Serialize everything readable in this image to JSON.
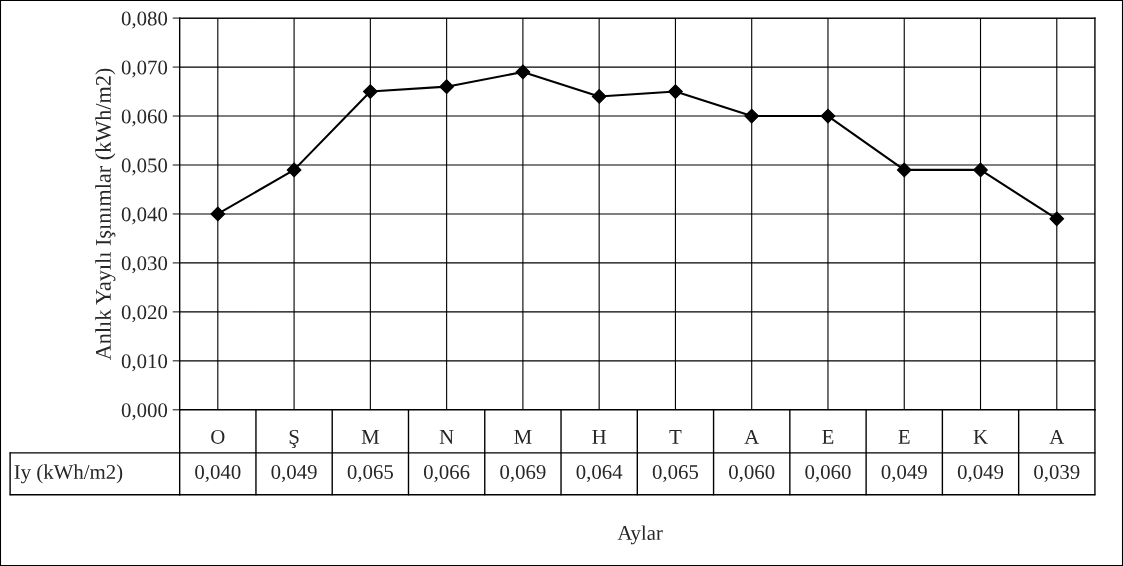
{
  "chart_data": {
    "type": "line",
    "xlabel": "Aylar",
    "ylabel": "Anlık Yayılı Işınımlar (kWh/m2)",
    "categories": [
      "O",
      "Ş",
      "M",
      "N",
      "M",
      "H",
      "T",
      "A",
      "E",
      "E",
      "K",
      "A"
    ],
    "series": [
      {
        "name": "Iy (kWh/m2)",
        "color": "#000000",
        "values": [
          0.04,
          0.049,
          0.065,
          0.066,
          0.069,
          0.064,
          0.065,
          0.06,
          0.06,
          0.049,
          0.049,
          0.039
        ],
        "value_labels": [
          "0,040",
          "0,049",
          "0,065",
          "0,066",
          "0,069",
          "0,064",
          "0,065",
          "0,060",
          "0,060",
          "0,049",
          "0,049",
          "0,039"
        ]
      }
    ],
    "ylim": [
      0,
      0.08
    ],
    "yticks": [
      {
        "value": 0,
        "label": "0,000"
      },
      {
        "value": 0.01,
        "label": "0,010"
      },
      {
        "value": 0.02,
        "label": "0,020"
      },
      {
        "value": 0.03,
        "label": "0,030"
      },
      {
        "value": 0.04,
        "label": "0,040"
      },
      {
        "value": 0.05,
        "label": "0,050"
      },
      {
        "value": 0.06,
        "label": "0,060"
      },
      {
        "value": 0.07,
        "label": "0,070"
      },
      {
        "value": 0.08,
        "label": "0,080"
      }
    ],
    "grid": true,
    "marker": "diamond",
    "line_style": "solid"
  }
}
